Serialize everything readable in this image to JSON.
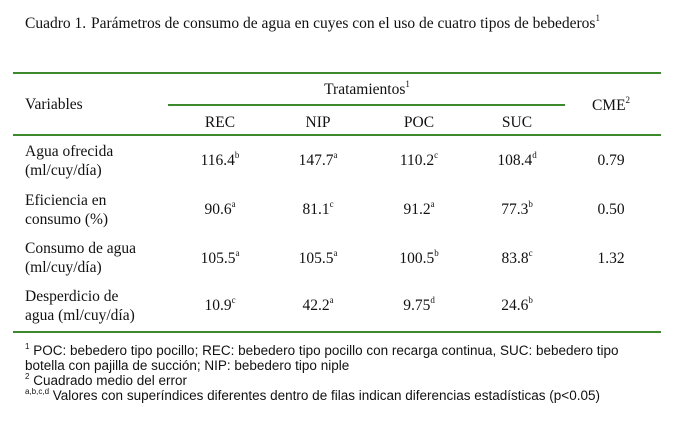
{
  "caption": {
    "label": "Cuadro 1.",
    "text": "Parámetros de consumo de agua en cuyes con el uso de cuatro tipos de bebederos",
    "sup": "1"
  },
  "header": {
    "variables": "Variables",
    "tratamientos": "Tratamientos",
    "tratamientos_sup": "1",
    "cme": "CME",
    "cme_sup": "2",
    "cols": [
      "REC",
      "NIP",
      "POC",
      "SUC"
    ]
  },
  "rows": [
    {
      "label": [
        "Agua ofrecida",
        "(ml/cuy/día)"
      ],
      "values": [
        {
          "v": "116.4",
          "s": "b"
        },
        {
          "v": "147.7",
          "s": "a"
        },
        {
          "v": "110.2",
          "s": "c"
        },
        {
          "v": "108.4",
          "s": "d"
        }
      ],
      "cme": "0.79"
    },
    {
      "label": [
        "Eficiencia en",
        "consumo (%)"
      ],
      "values": [
        {
          "v": "90.6",
          "s": "a"
        },
        {
          "v": "81.1",
          "s": "c"
        },
        {
          "v": "91.2",
          "s": "a"
        },
        {
          "v": "77.3",
          "s": "b"
        }
      ],
      "cme": "0.50"
    },
    {
      "label": [
        "Consumo de agua",
        "(ml/cuy/día)"
      ],
      "values": [
        {
          "v": "105.5",
          "s": "a"
        },
        {
          "v": "105.5",
          "s": "a"
        },
        {
          "v": "100.5",
          "s": "b"
        },
        {
          "v": "83.8",
          "s": "c"
        }
      ],
      "cme": "1.32"
    },
    {
      "label": [
        "Desperdicio de",
        "agua (ml/cuy/día)"
      ],
      "values": [
        {
          "v": "10.9",
          "s": "c"
        },
        {
          "v": "42.2",
          "s": "a"
        },
        {
          "v": "9.75",
          "s": "d"
        },
        {
          "v": "24.6",
          "s": "b"
        }
      ],
      "cme": ""
    }
  ],
  "notes": {
    "n1_sup": "1",
    "n1_line1": "POC: bebedero tipo pocillo; REC: bebedero tipo pocillo con recarga continua, SUC: bebedero tipo",
    "n1_line2": "botella con pajilla de succión; NIP: bebedero tipo niple",
    "n2_sup": "2",
    "n2_text": "Cuadrado medio del error",
    "n3_sup": "a,b,c,d",
    "n3_text": "Valores con superíndices diferentes dentro de filas indican diferencias estadísticas (p<0.05)"
  },
  "colors": {
    "rule": "#3d8a2e",
    "text": "#111111"
  }
}
